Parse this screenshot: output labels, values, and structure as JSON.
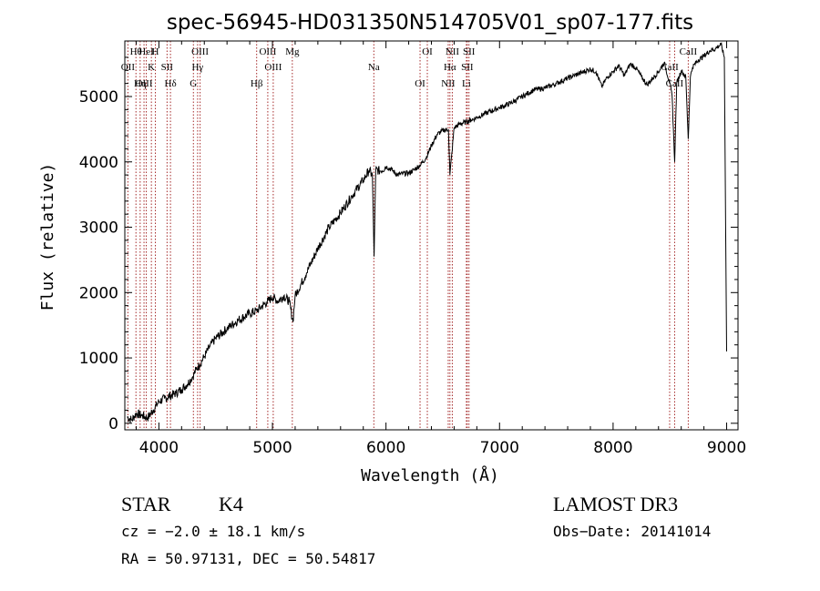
{
  "chart_data": {
    "type": "line",
    "title": "spec-56945-HD031350N514705V01_sp07-177.fits",
    "xlabel": "Wavelength (Å)",
    "ylabel": "Flux (relative)",
    "xlim": [
      3700,
      9100
    ],
    "ylim": [
      -100,
      5850
    ],
    "xticks": [
      4000,
      5000,
      6000,
      7000,
      8000,
      9000
    ],
    "yticks": [
      0,
      1000,
      2000,
      3000,
      4000,
      5000
    ],
    "series": [
      {
        "name": "flux",
        "x": [
          3720,
          3760,
          3800,
          3850,
          3900,
          3950,
          4000,
          4050,
          4100,
          4150,
          4200,
          4250,
          4300,
          4330,
          4360,
          4400,
          4450,
          4500,
          4600,
          4700,
          4800,
          4860,
          4900,
          4950,
          5000,
          5050,
          5100,
          5150,
          5180,
          5200,
          5300,
          5400,
          5500,
          5600,
          5700,
          5800,
          5850,
          5880,
          5895,
          5910,
          5950,
          6000,
          6050,
          6100,
          6150,
          6200,
          6250,
          6300,
          6350,
          6400,
          6450,
          6500,
          6550,
          6563,
          6600,
          6650,
          6700,
          6750,
          6800,
          6900,
          7000,
          7100,
          7200,
          7300,
          7400,
          7500,
          7600,
          7700,
          7800,
          7850,
          7900,
          7950,
          8000,
          8050,
          8100,
          8150,
          8200,
          8250,
          8300,
          8350,
          8400,
          8450,
          8500,
          8520,
          8542,
          8560,
          8600,
          8640,
          8662,
          8680,
          8700,
          8750,
          8800,
          8850,
          8900,
          8950,
          8980,
          9000
        ],
        "y": [
          100,
          50,
          150,
          120,
          80,
          200,
          330,
          380,
          420,
          460,
          520,
          600,
          720,
          830,
          900,
          1020,
          1180,
          1300,
          1450,
          1580,
          1680,
          1720,
          1780,
          1850,
          1930,
          1870,
          1950,
          1860,
          1550,
          1950,
          2300,
          2680,
          3000,
          3220,
          3480,
          3720,
          3870,
          3800,
          2550,
          3880,
          3860,
          3930,
          3880,
          3800,
          3820,
          3830,
          3880,
          3950,
          4050,
          4250,
          4420,
          4480,
          4500,
          3800,
          4520,
          4580,
          4610,
          4640,
          4680,
          4760,
          4830,
          4900,
          5000,
          5100,
          5130,
          5200,
          5280,
          5350,
          5420,
          5380,
          5150,
          5300,
          5380,
          5470,
          5320,
          5500,
          5440,
          5300,
          5180,
          5280,
          5380,
          5520,
          5200,
          5000,
          4000,
          5200,
          5400,
          5300,
          4350,
          5300,
          5450,
          5560,
          5620,
          5700,
          5730,
          5800,
          5600,
          1100
        ]
      }
    ],
    "lines": [
      {
        "name": "Hθ",
        "x": 3798
      },
      {
        "name": "OII",
        "x": 3727
      },
      {
        "name": "OIII",
        "x": 3869
      },
      {
        "name": "HeI",
        "x": 3889
      },
      {
        "name": "K",
        "x": 3934
      },
      {
        "name": "Hη",
        "x": 3835
      },
      {
        "name": "H",
        "x": 3969
      },
      {
        "name": "SII",
        "x": 4072
      },
      {
        "name": "Hδ",
        "x": 4102
      },
      {
        "name": "OIII",
        "x": 4363
      },
      {
        "name": "Hγ",
        "x": 4341
      },
      {
        "name": "G",
        "x": 4304
      },
      {
        "name": "OIII",
        "x": 4959
      },
      {
        "name": "OIII",
        "x": 5007
      },
      {
        "name": "Hβ",
        "x": 4861
      },
      {
        "name": "Mg",
        "x": 5175
      },
      {
        "name": "Na",
        "x": 5893
      },
      {
        "name": "OI",
        "x": 6300
      },
      {
        "name": "OI",
        "x": 6364
      },
      {
        "name": "Hα",
        "x": 6563
      },
      {
        "name": "NII",
        "x": 6548
      },
      {
        "name": "NII",
        "x": 6584
      },
      {
        "name": "SII",
        "x": 6716
      },
      {
        "name": "Li",
        "x": 6708
      },
      {
        "name": "SII",
        "x": 6731
      },
      {
        "name": "CaII",
        "x": 8498
      },
      {
        "name": "CaII",
        "x": 8542
      },
      {
        "name": "CaII",
        "x": 8662
      }
    ]
  },
  "info": {
    "object_class": "STAR",
    "subclass": "K4",
    "survey": "LAMOST DR3",
    "cz": "cz = −2.0 ± 18.1 km/s",
    "obs_date": "Obs−Date: 20141014",
    "coords": "RA =  50.97131, DEC =  50.54817"
  },
  "colors": {
    "axis": "#000000",
    "line_marker": "#a52a2a",
    "spectrum": "#000000"
  }
}
